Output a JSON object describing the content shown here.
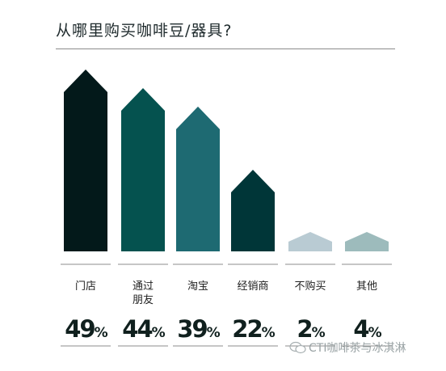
{
  "header": {
    "title": "从哪里购买咖啡豆/器具?"
  },
  "chart_data": {
    "type": "bar",
    "title": "从哪里购买咖啡豆/器具?",
    "categories": [
      "门店",
      "通过朋友",
      "淘宝",
      "经销商",
      "不购买",
      "其他"
    ],
    "category_lines": [
      [
        "门店"
      ],
      [
        "通过",
        "朋友"
      ],
      [
        "淘宝"
      ],
      [
        "经销商"
      ],
      [
        "不购买"
      ],
      [
        "其他"
      ]
    ],
    "values": [
      49,
      44,
      39,
      22,
      2,
      4
    ],
    "value_labels": [
      "49%",
      "44%",
      "39%",
      "22%",
      "2%",
      "4%"
    ],
    "unit": "%",
    "bar_shape": "arrow",
    "colors": [
      "#03191a",
      "#05524f",
      "#1e6a72",
      "#003638",
      "#b9cbd3",
      "#9dbbbc"
    ],
    "grid": false,
    "legend": "none"
  },
  "watermark": {
    "icon": "wechat-icon",
    "text": "CTI咖啡茶与冰淇淋"
  }
}
